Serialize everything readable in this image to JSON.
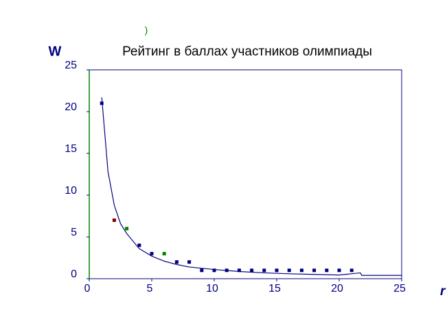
{
  "chart_data": {
    "type": "scatter",
    "title": "Рейтинг в баллах участников олимпиады",
    "annotation": ")",
    "y_label": "W",
    "x_label": "r",
    "xlim": [
      0,
      25
    ],
    "ylim": [
      0,
      25
    ],
    "xticks": [
      0,
      5,
      10,
      15,
      20,
      25
    ],
    "yticks": [
      0,
      5,
      10,
      15,
      20,
      25
    ],
    "series": [
      {
        "type": "scatter",
        "x": [
          1,
          2,
          3,
          4,
          5,
          6,
          7,
          8,
          9,
          10,
          11,
          12,
          13,
          14,
          15,
          16,
          17,
          18,
          19,
          20,
          21
        ],
        "values": [
          21,
          7,
          6,
          4,
          3,
          3,
          2,
          2,
          1,
          1,
          1,
          1,
          1,
          1,
          1,
          1,
          1,
          1,
          1,
          1,
          1
        ],
        "colors": [
          "#000080",
          "#800000",
          "#008000",
          "#000080",
          "#000080",
          "#008000",
          "#000080",
          "#000080",
          "#000080",
          "#000080",
          "#000080",
          "#000080",
          "#000080",
          "#000080",
          "#000080",
          "#000080",
          "#000080",
          "#000080",
          "#000080",
          "#000080",
          "#000080"
        ]
      },
      {
        "type": "line",
        "color": "#000080",
        "x": [
          1,
          1.5,
          2,
          2.5,
          3,
          4,
          5,
          6,
          7,
          8,
          10,
          12,
          14,
          16,
          18,
          20,
          21.7,
          21.8,
          25
        ],
        "values": [
          21.7,
          12.8,
          8.8,
          6.6,
          5.4,
          3.6,
          2.7,
          2.1,
          1.7,
          1.4,
          1.1,
          0.86,
          0.7,
          0.59,
          0.51,
          0.44,
          0.7,
          0.4,
          0.4
        ]
      }
    ]
  }
}
